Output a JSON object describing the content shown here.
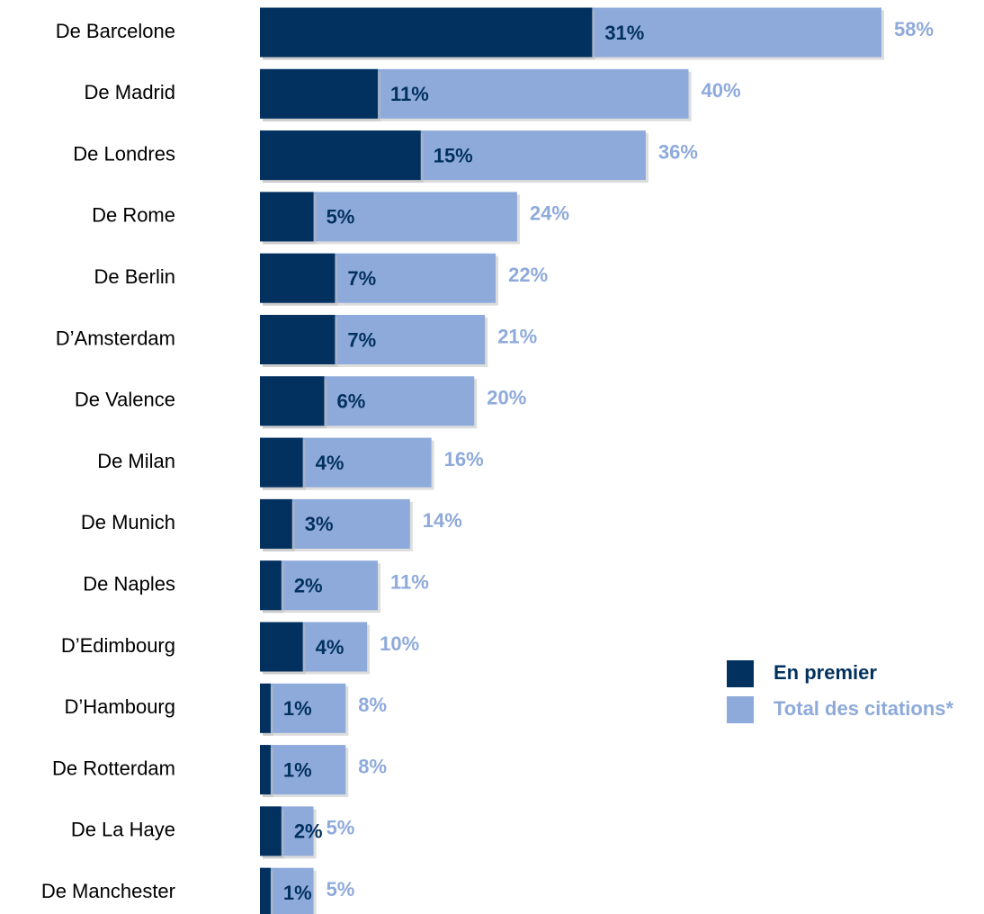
{
  "chart_data": {
    "type": "bar",
    "categories": [
      "De Barcelone",
      "De Madrid",
      "De Londres",
      "De Rome",
      "De Berlin",
      "D’Amsterdam",
      "De Valence",
      "De Milan",
      "De Munich",
      "De Naples",
      "D’Edimbourg",
      "D’Hambourg",
      "De Rotterdam",
      "De La Haye",
      "De Manchester"
    ],
    "series": [
      {
        "name": "Total des citations*",
        "color": "#8eaadb",
        "values": [
          58,
          40,
          36,
          24,
          22,
          21,
          20,
          16,
          14,
          11,
          10,
          8,
          8,
          5,
          5
        ],
        "value_labels": [
          "58%",
          "40%",
          "36%",
          "24%",
          "22%",
          "21%",
          "20%",
          "16%",
          "14%",
          "11%",
          "10%",
          "8%",
          "8%",
          "5%",
          "5%"
        ]
      },
      {
        "name": "En premier",
        "color": "#02315f",
        "values": [
          31,
          11,
          15,
          5,
          7,
          7,
          6,
          4,
          3,
          2,
          4,
          1,
          1,
          2,
          1
        ],
        "value_labels": [
          "31%",
          "11%",
          "15%",
          "5%",
          "7%",
          "7%",
          "6%",
          "4%",
          "3%",
          "2%",
          "4%",
          "1%",
          "1%",
          "2%",
          "1%"
        ]
      }
    ],
    "legend": "lower right"
  }
}
